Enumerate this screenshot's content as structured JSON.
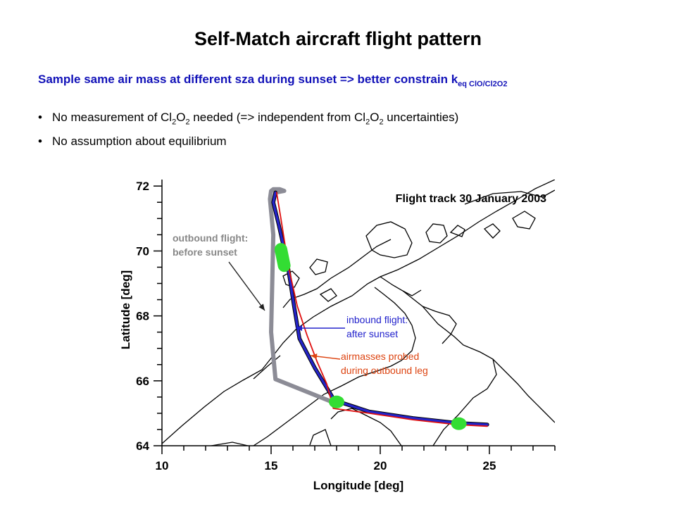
{
  "slide": {
    "title": "Self-Match aircraft flight pattern",
    "subtitle": {
      "text": "Sample same air mass at different sza during sunset => better constrain k",
      "sub": "eq ClO/Cl2O2"
    },
    "bullets": [
      {
        "pre": "No measurement of Cl",
        "s1": "2",
        "mid1": "O",
        "s2": "2",
        "mid2": " needed (=> independent from Cl",
        "s3": "2",
        "mid3": "O",
        "s4": "2",
        "post": " uncertainties)"
      },
      {
        "pre": "No assumption about equilibrium"
      }
    ]
  },
  "map": {
    "title": "Flight track 30 January 2003",
    "xlabel": "Longitude [deg]",
    "ylabel": "Latitude [deg]",
    "xlim": [
      10,
      28
    ],
    "ylim": [
      64,
      72.2
    ],
    "xticks": [
      10,
      15,
      20,
      25
    ],
    "yticks": [
      64,
      66,
      68,
      70,
      72
    ],
    "annotations": {
      "outbound": [
        "outbound flight:",
        "before sunset"
      ],
      "inbound": [
        "inbound flight:",
        "after sunset"
      ],
      "airmasses": [
        "airmasses probed",
        "during outbound leg"
      ]
    },
    "colors": {
      "outbound": "#8c8c96",
      "inbound": "#2424c8",
      "airmasses": "#e01010",
      "match": "#33dd33",
      "coast": "#000000",
      "outbound_text": "#888888",
      "inbound_text": "#2222cc",
      "airmasses_text": "#dd4411"
    }
  },
  "chart_data": {
    "type": "line",
    "title": "Flight track 30 January 2003",
    "xlabel": "Longitude [deg]",
    "ylabel": "Latitude [deg]",
    "xlim": [
      10,
      28
    ],
    "ylim": [
      64,
      72.2
    ],
    "series": [
      {
        "name": "outbound flight: before sunset",
        "x": [
          17.8,
          15.2,
          15.0,
          15.05,
          15.1,
          14.95,
          15.0,
          15.1,
          15.4,
          15.6,
          15.2
        ],
        "y": [
          65.35,
          66.05,
          67.5,
          69.0,
          70.5,
          71.6,
          71.85,
          71.9,
          71.9,
          71.85,
          71.8
        ]
      },
      {
        "name": "inbound flight: after sunset",
        "x": [
          15.2,
          15.1,
          15.35,
          15.75,
          16.05,
          16.3,
          17.0,
          17.9,
          19.5,
          21.5,
          23.5,
          24.9
        ],
        "y": [
          71.8,
          71.5,
          70.8,
          69.6,
          68.3,
          67.3,
          66.4,
          65.4,
          65.05,
          64.85,
          64.7,
          64.65
        ]
      },
      {
        "name": "airmasses probed during outbound leg",
        "x": [
          15.25,
          15.45,
          15.8,
          16.2,
          16.65,
          17.1,
          17.55,
          17.85,
          19.5,
          21.5,
          23.5,
          24.9
        ],
        "y": [
          71.8,
          71.0,
          69.5,
          68.3,
          67.4,
          66.6,
          65.9,
          65.15,
          65.0,
          64.8,
          64.65,
          64.6
        ]
      }
    ],
    "match_points": [
      {
        "x": [
          15.45,
          15.6
        ],
        "y": [
          70.05,
          69.55
        ]
      },
      {
        "x": 18.0,
        "y": 65.35
      },
      {
        "x": 23.6,
        "y": 64.68
      }
    ]
  }
}
